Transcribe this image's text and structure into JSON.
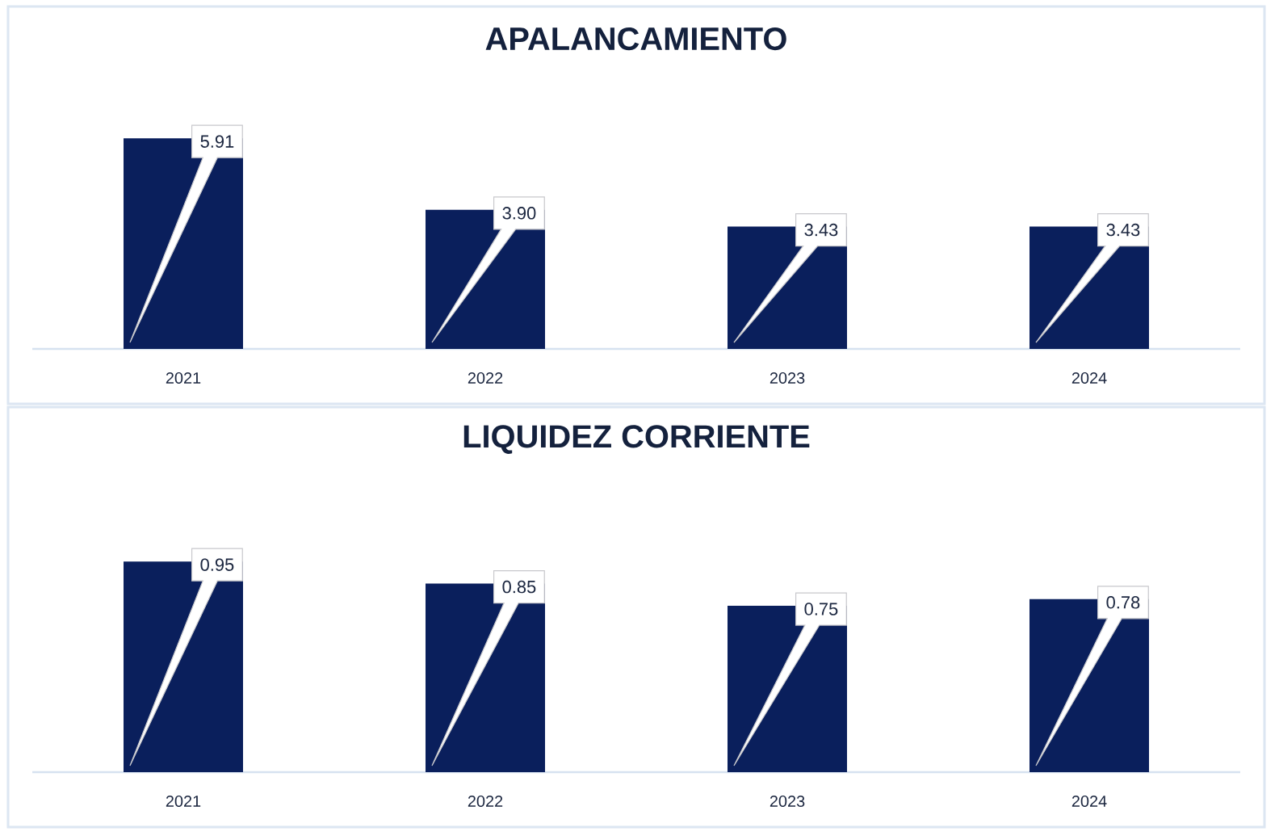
{
  "chart_data": [
    {
      "type": "bar",
      "title": "APALANCAMIENTO",
      "categories": [
        "2021",
        "2022",
        "2023",
        "2024"
      ],
      "values": [
        5.91,
        3.9,
        3.43,
        3.43
      ],
      "value_labels": [
        "5.91",
        "3.90",
        "3.43",
        "3.43"
      ],
      "color": "#0a1f5c"
    },
    {
      "type": "bar",
      "title": "LIQUIDEZ CORRIENTE",
      "categories": [
        "2021",
        "2022",
        "2023",
        "2024"
      ],
      "values": [
        0.95,
        0.85,
        0.75,
        0.78
      ],
      "value_labels": [
        "0.95",
        "0.85",
        "0.75",
        "0.78"
      ],
      "color": "#0a1f5c"
    }
  ]
}
